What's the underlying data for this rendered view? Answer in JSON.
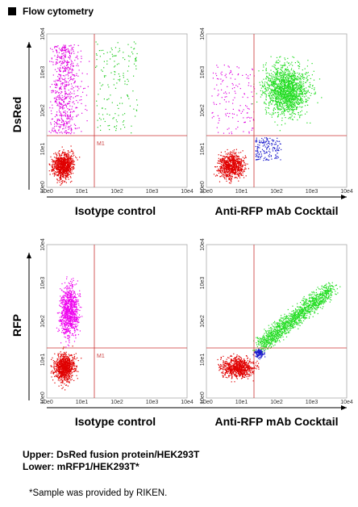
{
  "header": {
    "title": "Flow cytometry"
  },
  "tick_labels": [
    "10e0",
    "10e1",
    "10e2",
    "10e3",
    "10e4"
  ],
  "marker": "M1",
  "rows": [
    {
      "y_axis_label": "DsRed",
      "x_axis_labels": [
        "Isotype control",
        "Anti-RFP mAb Cocktail"
      ]
    },
    {
      "y_axis_label": "RFP",
      "x_axis_labels": [
        "Isotype control",
        "Anti-RFP mAb Cocktail"
      ]
    }
  ],
  "notes": [
    "Upper: DsRed fusion protein/HEK293T",
    "Lower: mRFP1/HEK293T*",
    "*Sample was provided by RIKEN."
  ]
}
